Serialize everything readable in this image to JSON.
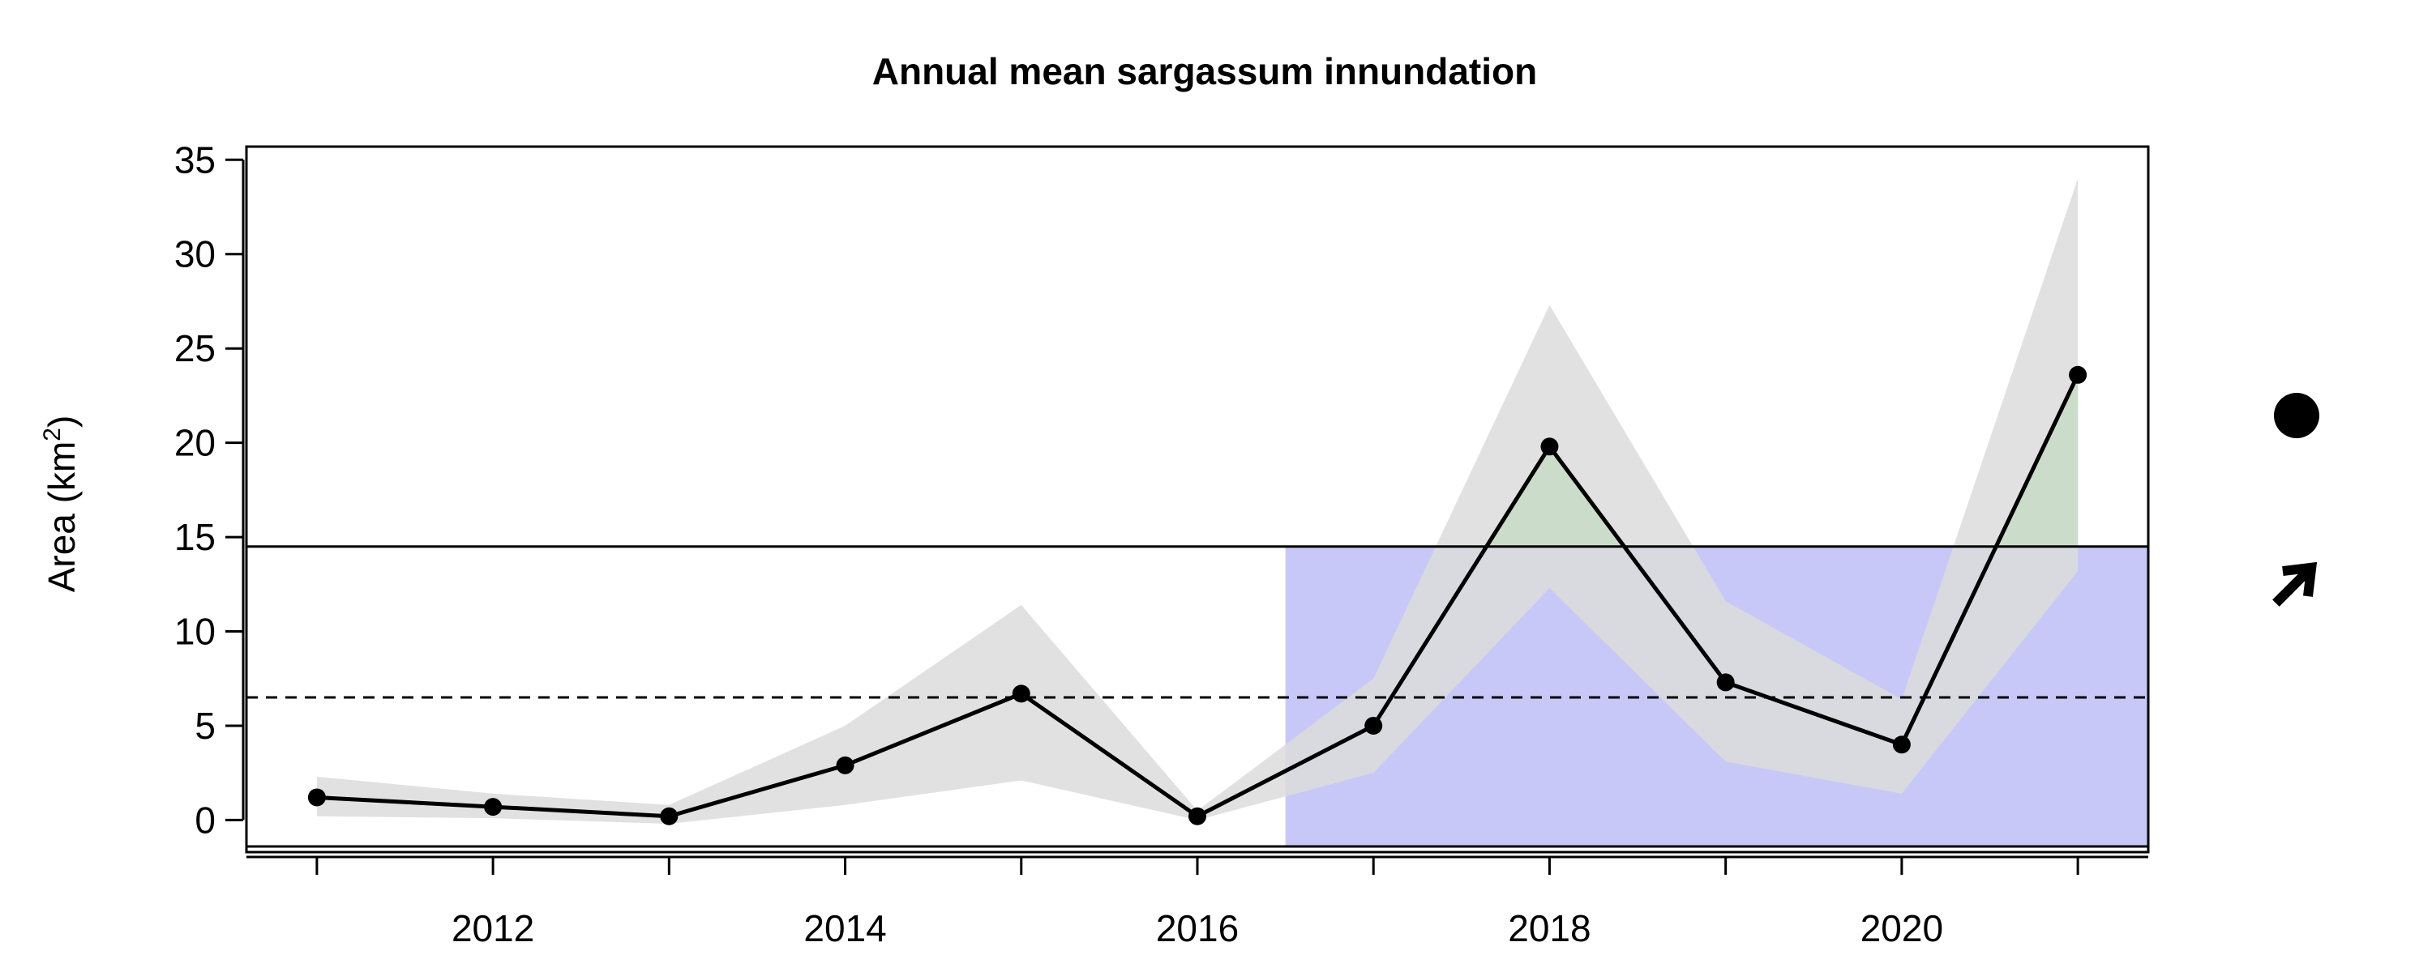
{
  "chart_data": {
    "type": "line",
    "title": "Annual mean sargassum innundation",
    "ylabel_main": "Area (km",
    "ylabel_sup": "2",
    "ylabel_close": ")",
    "xlabel": "",
    "x": [
      2011,
      2012,
      2013,
      2014,
      2015,
      2016,
      2017,
      2018,
      2019,
      2020,
      2021
    ],
    "series": [
      {
        "values": [
          1.2,
          0.7,
          0.2,
          2.9,
          6.7,
          0.2,
          5.0,
          19.8,
          7.3,
          4.0,
          23.6
        ],
        "upper": [
          2.3,
          1.4,
          0.8,
          5.0,
          11.4,
          0.5,
          7.5,
          27.3,
          11.6,
          6.4,
          34.0
        ],
        "lower": [
          0.2,
          0.1,
          -0.2,
          0.8,
          2.1,
          0.0,
          2.5,
          12.3,
          3.1,
          1.4,
          13.2
        ]
      }
    ],
    "mean_line": 6.5,
    "upper_threshold": 14.5,
    "lower_threshold": -1.4,
    "recent_period_start": 2016.5,
    "xlim": [
      2010.6,
      2021.4
    ],
    "ylim": [
      -1.7,
      35.7
    ],
    "x_ticks_major": [
      2011,
      2012,
      2013,
      2014,
      2015,
      2016,
      2017,
      2018,
      2019,
      2020,
      2021
    ],
    "x_tick_labels": [
      "2012",
      "2014",
      "2016",
      "2018",
      "2020"
    ],
    "y_ticks": [
      "0",
      "5",
      "10",
      "15",
      "20",
      "25",
      "30",
      "35"
    ],
    "grid": false,
    "legend": "none",
    "trend_indicators": {
      "mean_status": "filled-circle-icon",
      "trend": "arrow-up-right-icon"
    },
    "colors": {
      "line": "#000000",
      "ci_band": "#dcdcdc",
      "recent_period_shade": "#c8c8f8",
      "above_threshold": "#6ddc6d",
      "mean_dashed": "#000000"
    }
  }
}
